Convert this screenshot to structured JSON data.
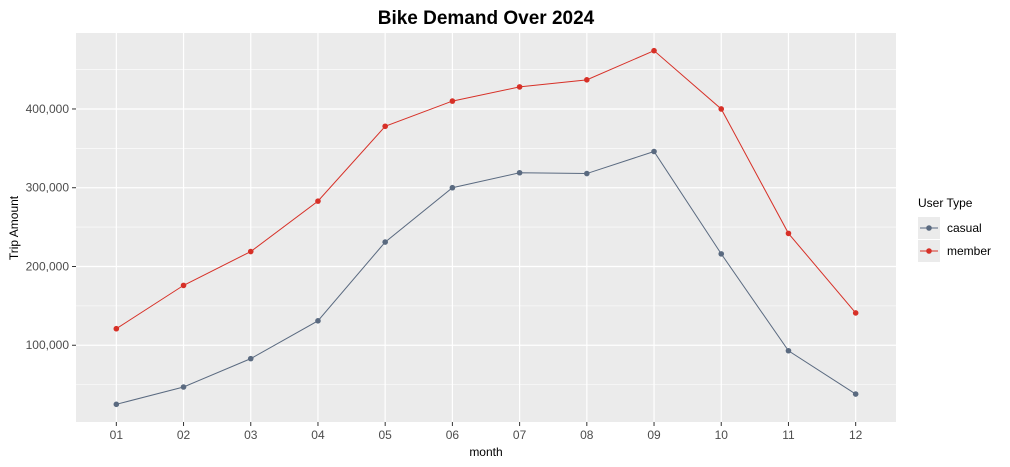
{
  "chart_data": {
    "type": "line",
    "title": "Bike Demand Over 2024",
    "xlabel": "month",
    "ylabel": "Trip Amount",
    "categories": [
      "01",
      "02",
      "03",
      "04",
      "05",
      "06",
      "07",
      "08",
      "09",
      "10",
      "11",
      "12"
    ],
    "ylim": [
      0,
      500000
    ],
    "yticks": [
      100000,
      200000,
      300000,
      400000
    ],
    "ytick_labels": [
      "100,000",
      "200,000",
      "300,000",
      "400,000"
    ],
    "grid": true,
    "legend": {
      "title": "User Type",
      "position": "right"
    },
    "series": [
      {
        "name": "casual",
        "color": "#5a6a80",
        "values": [
          25000,
          47000,
          83000,
          131000,
          231000,
          300000,
          319000,
          318000,
          346000,
          216000,
          93000,
          38000
        ]
      },
      {
        "name": "member",
        "color": "#d73027",
        "values": [
          121000,
          176000,
          219000,
          283000,
          378000,
          410000,
          428000,
          437000,
          474000,
          400000,
          242000,
          141000
        ]
      }
    ]
  }
}
